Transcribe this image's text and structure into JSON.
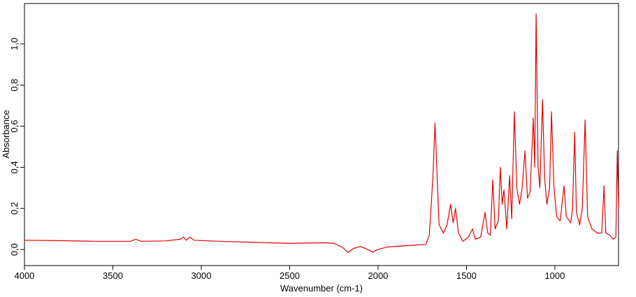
{
  "chart_data": {
    "type": "line",
    "xlabel": "Wavenumber (cm-1)",
    "ylabel": "Absorbance",
    "color": "#e00000",
    "xlim": [
      4000,
      640
    ],
    "xticks": [
      4000,
      3500,
      3000,
      2500,
      2000,
      1500,
      1000
    ],
    "ylim": [
      -0.078,
      1.197
    ],
    "yticks": [
      {
        "value": 0,
        "label": "0,0"
      },
      {
        "value": 0.2,
        "label": "0,2"
      },
      {
        "value": 0.4,
        "label": "0,4"
      },
      {
        "value": 0.6,
        "label": "0,6"
      },
      {
        "value": 0.8,
        "label": "0,8"
      },
      {
        "value": 1.0,
        "label": "1,0"
      }
    ],
    "grid": false,
    "x": [
      4000,
      3800,
      3600,
      3400,
      3370,
      3340,
      3200,
      3120,
      3100,
      3085,
      3065,
      3040,
      2900,
      2700,
      2500,
      2300,
      2250,
      2200,
      2170,
      2140,
      2100,
      2070,
      2030,
      2000,
      1950,
      1850,
      1780,
      1730,
      1710,
      1690,
      1678,
      1668,
      1655,
      1630,
      1610,
      1590,
      1575,
      1562,
      1545,
      1520,
      1490,
      1466,
      1450,
      1420,
      1395,
      1380,
      1365,
      1351,
      1338,
      1320,
      1308,
      1298,
      1288,
      1272,
      1256,
      1244,
      1229,
      1215,
      1200,
      1185,
      1169,
      1155,
      1140,
      1122,
      1114,
      1106,
      1095,
      1085,
      1070,
      1058,
      1045,
      1030,
      1019,
      1005,
      990,
      970,
      948,
      935,
      910,
      900,
      888,
      878,
      860,
      845,
      829,
      815,
      790,
      760,
      735,
      722,
      712,
      690,
      670,
      655,
      647,
      640
    ],
    "values": [
      0.045,
      0.043,
      0.04,
      0.04,
      0.05,
      0.04,
      0.042,
      0.05,
      0.06,
      0.045,
      0.06,
      0.045,
      0.04,
      0.035,
      0.03,
      0.033,
      0.03,
      0.01,
      -0.015,
      0.005,
      0.015,
      0.005,
      -0.012,
      0.0,
      0.012,
      0.018,
      0.022,
      0.025,
      0.07,
      0.35,
      0.616,
      0.4,
      0.12,
      0.08,
      0.12,
      0.22,
      0.13,
      0.2,
      0.08,
      0.04,
      0.06,
      0.1,
      0.05,
      0.06,
      0.18,
      0.08,
      0.07,
      0.34,
      0.1,
      0.14,
      0.4,
      0.22,
      0.29,
      0.1,
      0.36,
      0.15,
      0.67,
      0.3,
      0.22,
      0.3,
      0.48,
      0.25,
      0.28,
      0.64,
      0.4,
      1.146,
      0.4,
      0.3,
      0.73,
      0.35,
      0.22,
      0.3,
      0.67,
      0.3,
      0.16,
      0.14,
      0.31,
      0.16,
      0.13,
      0.2,
      0.57,
      0.18,
      0.12,
      0.2,
      0.63,
      0.16,
      0.1,
      0.08,
      0.08,
      0.31,
      0.08,
      0.07,
      0.05,
      0.06,
      0.48,
      0.2
    ]
  }
}
